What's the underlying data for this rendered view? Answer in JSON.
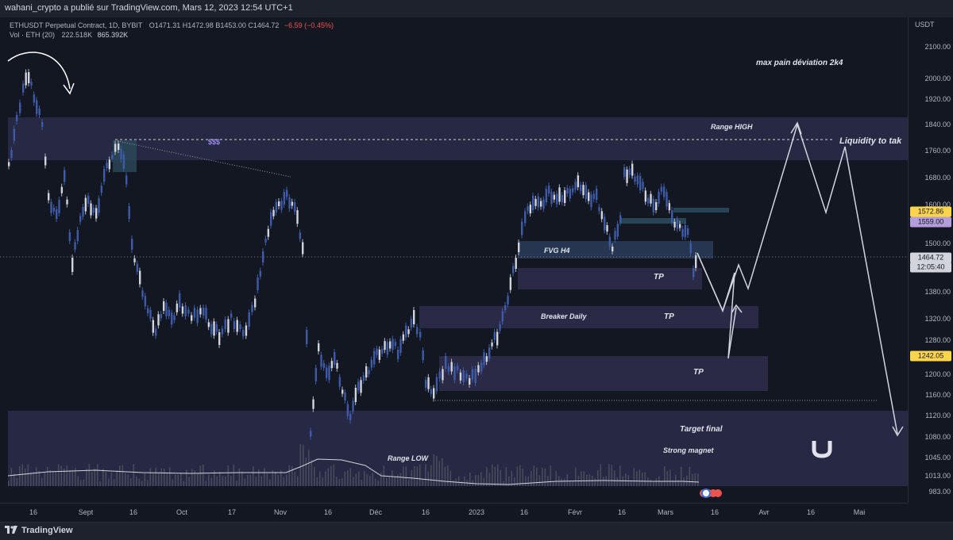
{
  "header": {
    "publisher_text": "wahani_crypto a publié sur TradingView.com, Mars 12, 2023 12:54 UTC+1"
  },
  "legend": {
    "symbol": "ETHUSDT Perpetual Contract, 1D, BYBIT",
    "ohlc": "O1471.31  H1472.98  B1453.00  C1464.72",
    "change": "−6.59 (−0.45%)",
    "vol_label": "Vol · ETH (20)",
    "vol_a": "222.518K",
    "vol_b": "865.392K"
  },
  "price_axis": {
    "currency": "USDT",
    "ticks": [
      "2100.00",
      "2000.00",
      "1920.00",
      "1840.00",
      "1760.00",
      "1680.00",
      "1600.00",
      "1500.00",
      "1380.00",
      "1320.00",
      "1280.00",
      "1200.00",
      "1160.00",
      "1120.00",
      "1080.00",
      "1045.00",
      "1013.00",
      "983.00"
    ],
    "badges": [
      {
        "text": "1572.86",
        "bg": "#ffd54f",
        "fg": "#131722"
      },
      {
        "text": "1559.00",
        "bg": "#b39ddb",
        "fg": "#131722"
      },
      {
        "text": "1464.72",
        "bg": "#d1d4dc",
        "fg": "#131722"
      },
      {
        "text": "12:05:40",
        "bg": "#d1d4dc",
        "fg": "#131722"
      },
      {
        "text": "1242.05",
        "bg": "#ffd54f",
        "fg": "#131722"
      }
    ]
  },
  "time_axis": {
    "labels": [
      "16",
      "Sept",
      "16",
      "Oct",
      "17",
      "Nov",
      "16",
      "Déc",
      "16",
      "2023",
      "16",
      "Févr",
      "16",
      "Mars",
      "16",
      "Avr",
      "16",
      "Mai"
    ]
  },
  "annotations": {
    "max_pain": "max pain  déviation 2k4",
    "range_high": "Range HIGH",
    "liquidity": "Liquidity to tak",
    "dollars": "$$$",
    "fvg": "FVG H4",
    "tp1": "TP",
    "breaker": "Breaker Daily",
    "tp2": "TP",
    "tp3": "TP",
    "target": "Target final",
    "magnet": "Strong magnet",
    "range_low": "Range LOW"
  },
  "footer": {
    "brand": "TradingView"
  },
  "colors": {
    "background": "#131722",
    "zone": "#2a2a48",
    "candle_up": "#3d5ba8",
    "candle_down": "#d1d4dc",
    "accent": "#ffd54f"
  }
}
